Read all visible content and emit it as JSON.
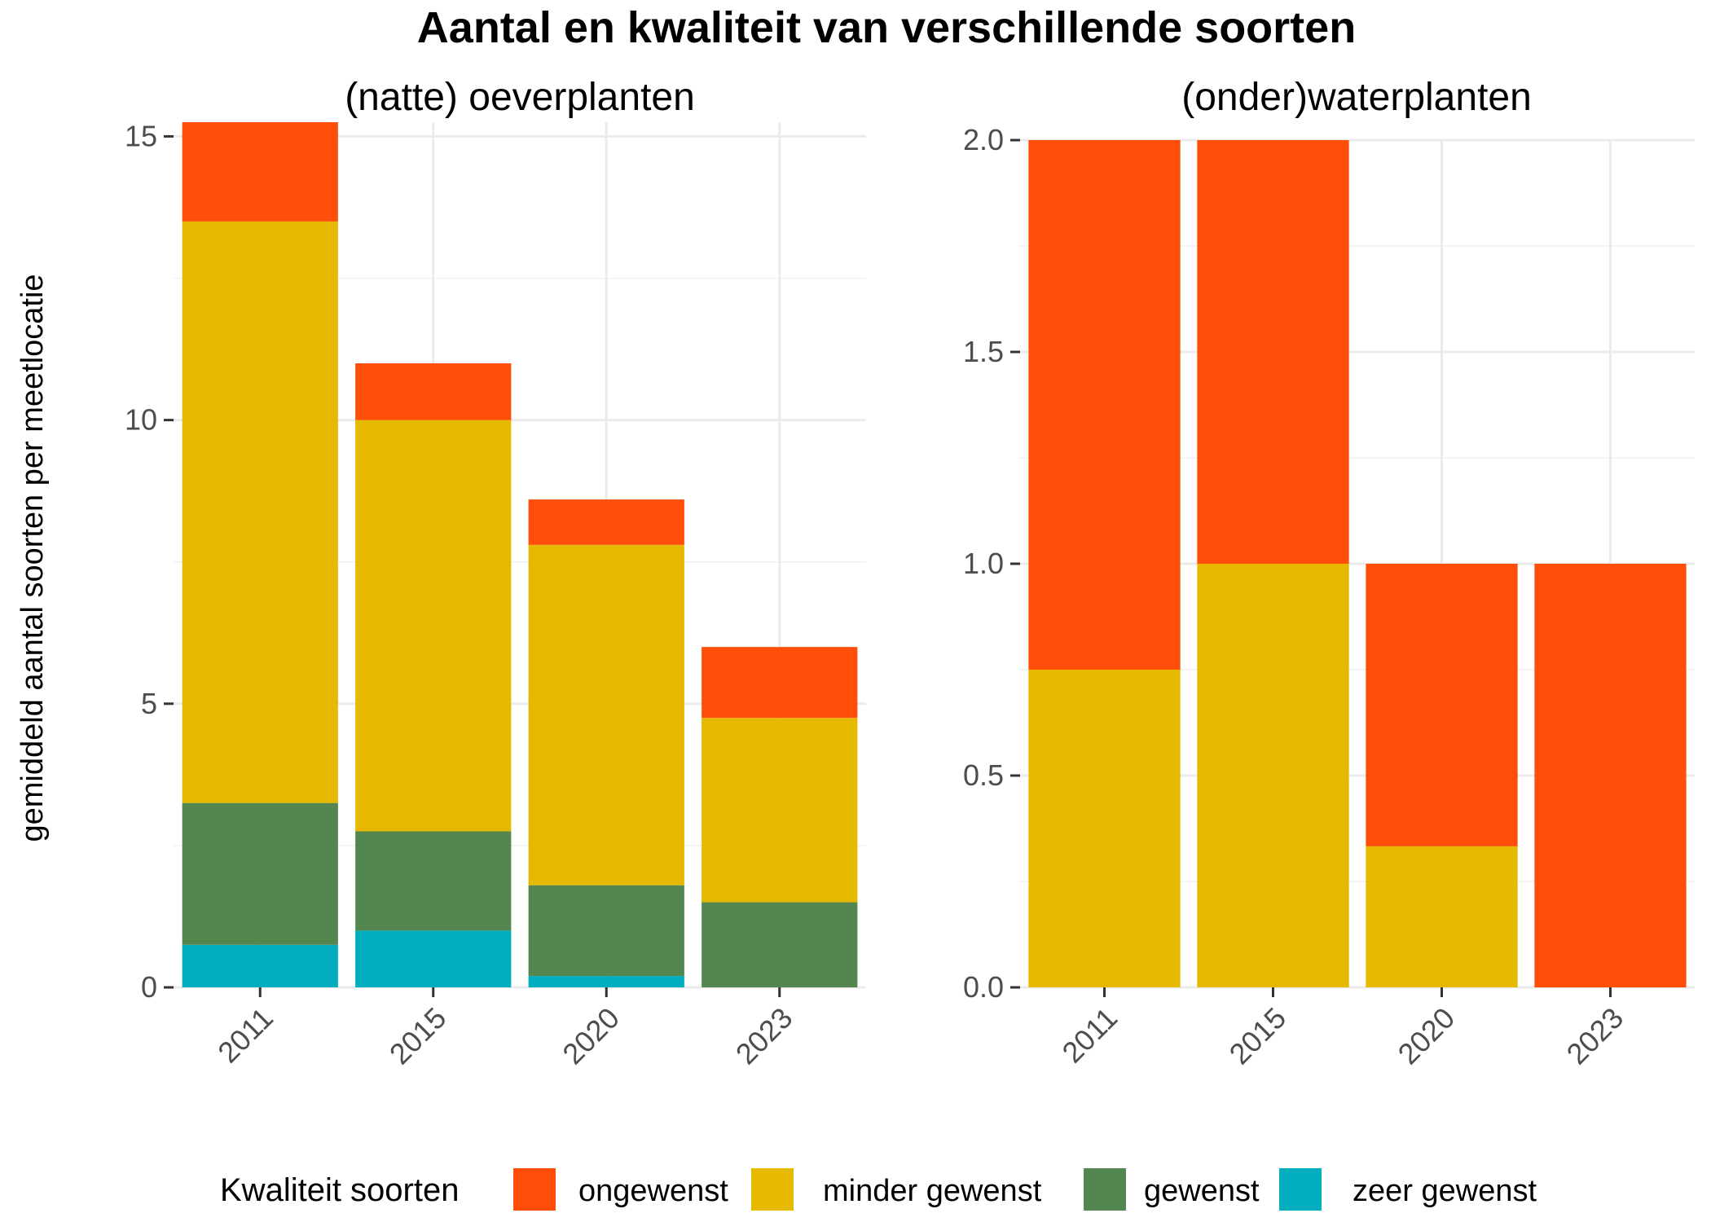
{
  "chart_data": {
    "type": "bar",
    "title": "Aantal en kwaliteit van verschillende soorten",
    "ylabel": "gemiddeld aantal soorten per meetlocatie",
    "legend": {
      "title": "Kwaliteit soorten",
      "position": "bottom",
      "items": [
        {
          "name": "ongewenst",
          "color": "#FF4E0A"
        },
        {
          "name": "minder gewenst",
          "color": "#E5B900"
        },
        {
          "name": "gewenst",
          "color": "#53874F"
        },
        {
          "name": "zeer gewenst",
          "color": "#00AEBD"
        }
      ]
    },
    "stacking": "stacked",
    "grid": true,
    "panels": [
      {
        "title": "(natte) oeverplanten",
        "categories": [
          "2011",
          "2015",
          "2020",
          "2023"
        ],
        "ylim": [
          0,
          15.25
        ],
        "yticks": [
          0,
          5,
          10,
          15
        ],
        "ytick_labels": [
          "0",
          "5",
          "10",
          "15"
        ],
        "series": [
          {
            "name": "zeer gewenst",
            "color": "#00AEBD",
            "values": [
              0.75,
              1.0,
              0.2,
              0
            ]
          },
          {
            "name": "gewenst",
            "color": "#53874F",
            "values": [
              2.5,
              1.75,
              1.6,
              1.5
            ]
          },
          {
            "name": "minder gewenst",
            "color": "#E5B900",
            "values": [
              10.25,
              7.25,
              6.0,
              3.25
            ]
          },
          {
            "name": "ongewenst",
            "color": "#FF4E0A",
            "values": [
              1.75,
              1.0,
              0.8,
              1.25
            ]
          }
        ]
      },
      {
        "title": "(onder)waterplanten",
        "categories": [
          "2011",
          "2015",
          "2020",
          "2023"
        ],
        "ylim": [
          0,
          2.0
        ],
        "yticks": [
          0,
          0.5,
          1.0,
          1.5,
          2.0
        ],
        "ytick_labels": [
          "0.0",
          "0.5",
          "1.0",
          "1.5",
          "2.0"
        ],
        "series": [
          {
            "name": "zeer gewenst",
            "color": "#00AEBD",
            "values": [
              0,
              0,
              0,
              0
            ]
          },
          {
            "name": "gewenst",
            "color": "#53874F",
            "values": [
              0,
              0,
              0,
              0
            ]
          },
          {
            "name": "minder gewenst",
            "color": "#E5B900",
            "values": [
              0.75,
              1.0,
              0.333,
              0
            ]
          },
          {
            "name": "ongewenst",
            "color": "#FF4E0A",
            "values": [
              1.25,
              1.0,
              0.667,
              1.0
            ]
          }
        ]
      }
    ]
  }
}
